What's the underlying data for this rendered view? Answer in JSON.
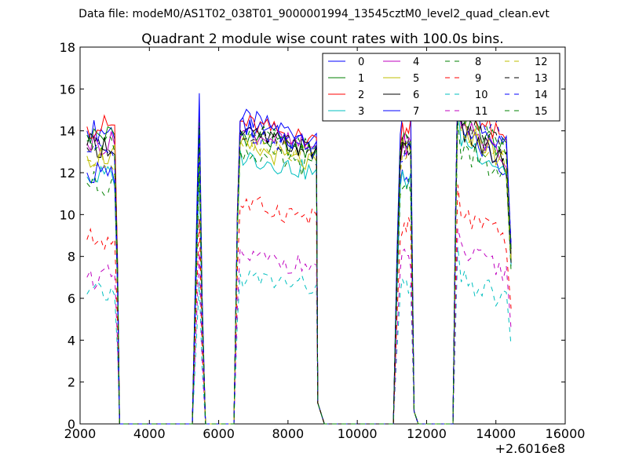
{
  "header": {
    "datafile": "Data file: modeM0/AS1T02_038T01_9000001994_13545cztM0_level2_quad_clean.evt"
  },
  "chart_data": {
    "type": "line",
    "title": "Quadrant 2 module wise count rates with 100.0s bins.",
    "xlabel": "",
    "ylabel": "",
    "x_offset_label": "+2.6016e8",
    "xlim": [
      2000,
      16000
    ],
    "ylim": [
      0,
      18
    ],
    "xticks": [
      2000,
      4000,
      6000,
      8000,
      10000,
      12000,
      14000,
      16000
    ],
    "yticks": [
      0,
      2,
      4,
      6,
      8,
      10,
      12,
      14,
      16,
      18
    ],
    "grid": false,
    "legend_position": "top-right",
    "legend_columns": 4,
    "segments": [
      {
        "start": 2200,
        "rise": 3000,
        "fall": 3140
      },
      {
        "start": 5240,
        "peak": 5440,
        "end": 5620
      },
      {
        "start": 6440,
        "rise": 6600,
        "fall": 8840
      },
      {
        "start": 8840,
        "fall": 9050
      },
      {
        "start": 11040,
        "rise": 11240,
        "fall": 11640
      },
      {
        "start": 12760,
        "rise": 12880,
        "fall": 14440
      }
    ],
    "series": [
      {
        "name": "0",
        "color": "#0000ff",
        "dash": "solid",
        "level_a": 14.0,
        "level_b": 12.5,
        "level_c": 14.6,
        "level_d": 13.9
      },
      {
        "name": "1",
        "color": "#008000",
        "dash": "solid",
        "level_a": 13.8,
        "level_b": 14.2,
        "level_c": 13.8,
        "level_d": 14.7
      },
      {
        "name": "2",
        "color": "#ff0000",
        "dash": "solid",
        "level_a": 14.2,
        "level_b": 15.0,
        "level_c": 14.4,
        "level_d": 15.2
      },
      {
        "name": "3",
        "color": "#00bfbf",
        "dash": "solid",
        "level_a": 11.8,
        "level_b": 12.3,
        "level_c": 12.8,
        "level_d": 13.7
      },
      {
        "name": "4",
        "color": "#bf00bf",
        "dash": "solid",
        "level_a": 13.4,
        "level_b": 14.0,
        "level_c": 14.0,
        "level_d": 14.4
      },
      {
        "name": "5",
        "color": "#bfbf00",
        "dash": "solid",
        "level_a": 12.8,
        "level_b": 13.9,
        "level_c": 13.2,
        "level_d": 14.2
      },
      {
        "name": "6",
        "color": "#000000",
        "dash": "solid",
        "level_a": 13.3,
        "level_b": 14.0,
        "level_c": 13.9,
        "level_d": 14.0
      },
      {
        "name": "7",
        "color": "#0000ff",
        "dash": "solid",
        "level_a": 12.0,
        "level_b": 15.8,
        "level_c": 14.2,
        "level_d": 15.2
      },
      {
        "name": "8",
        "color": "#008000",
        "dash": "dashed",
        "level_a": 11.5,
        "level_b": 12.0,
        "level_c": 13.0,
        "level_d": 13.2
      },
      {
        "name": "9",
        "color": "#ff0000",
        "dash": "dashed",
        "level_a": 8.8,
        "level_b": 9.8,
        "level_c": 10.5,
        "level_d": 10.0
      },
      {
        "name": "10",
        "color": "#00bfbf",
        "dash": "dashed",
        "level_a": 6.2,
        "level_b": 6.8,
        "level_c": 7.0,
        "level_d": 6.8
      },
      {
        "name": "11",
        "color": "#bf00bf",
        "dash": "dashed",
        "level_a": 7.0,
        "level_b": 8.2,
        "level_c": 8.0,
        "level_d": 8.2
      },
      {
        "name": "12",
        "color": "#bfbf00",
        "dash": "dashed",
        "level_a": 12.6,
        "level_b": 13.6,
        "level_c": 13.6,
        "level_d": 14.0
      },
      {
        "name": "13",
        "color": "#000000",
        "dash": "dashed",
        "level_a": 13.2,
        "level_b": 14.2,
        "level_c": 14.0,
        "level_d": 14.8
      },
      {
        "name": "14",
        "color": "#0000ff",
        "dash": "dashed",
        "level_a": 13.0,
        "level_b": 13.8,
        "level_c": 14.0,
        "level_d": 15.6
      },
      {
        "name": "15",
        "color": "#008000",
        "dash": "dashed",
        "level_a": 13.5,
        "level_b": 14.4,
        "level_c": 14.0,
        "level_d": 15.0
      }
    ]
  }
}
